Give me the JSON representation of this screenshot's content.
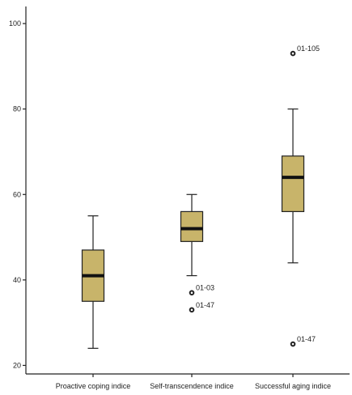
{
  "chart_data": {
    "type": "boxplot",
    "title": "",
    "xlabel": "",
    "ylabel": "",
    "ylim": [
      18,
      104
    ],
    "yticks": [
      20,
      40,
      60,
      80,
      100
    ],
    "grid": false,
    "box_color": "#c8b46a",
    "categories": [
      "Proactive coping indice",
      "Self-transcendence indice",
      "Successful aging indice"
    ],
    "boxes": [
      {
        "name": "Proactive coping indice",
        "whisker_low": 24,
        "q1": 35,
        "median": 41,
        "q3": 47,
        "whisker_high": 55,
        "outliers": []
      },
      {
        "name": "Self-transcendence indice",
        "whisker_low": 41,
        "q1": 49,
        "median": 52,
        "q3": 56,
        "whisker_high": 60,
        "outliers": [
          {
            "value": 37,
            "label": "01-03"
          },
          {
            "value": 33,
            "label": "01-47"
          }
        ]
      },
      {
        "name": "Successful aging indice",
        "whisker_low": 44,
        "q1": 56,
        "median": 64,
        "q3": 69,
        "whisker_high": 80,
        "outliers": [
          {
            "value": 93,
            "label": "01-105"
          },
          {
            "value": 25,
            "label": "01-47"
          }
        ]
      }
    ]
  }
}
